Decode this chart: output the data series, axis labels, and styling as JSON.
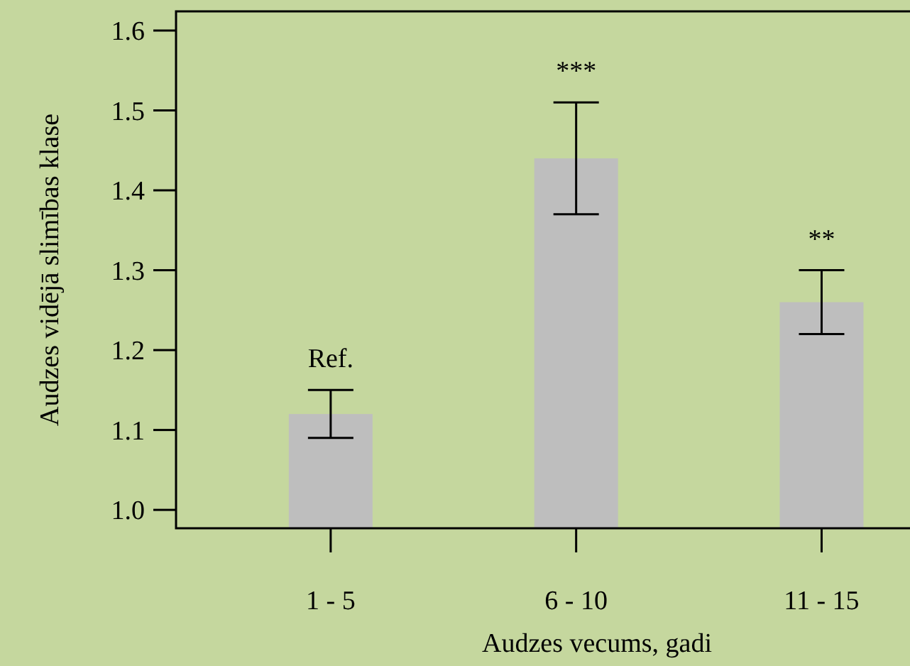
{
  "chart_data": {
    "type": "bar",
    "xlabel": "Audzes vecums, gadi",
    "ylabel": "Audzes vidējā slimības klase",
    "categories": [
      "1 - 5",
      "6 - 10",
      "11 - 15"
    ],
    "values": [
      1.12,
      1.44,
      1.26
    ],
    "color": "#bebebe",
    "errors": [
      [
        1.09,
        1.15
      ],
      [
        1.37,
        1.51
      ],
      [
        1.22,
        1.3
      ]
    ],
    "ylim": [
      0.977,
      1.624
    ],
    "yticks": [
      {
        "value": 1.0,
        "label": "1.0"
      },
      1.1,
      1.2,
      1.3,
      1.4,
      1.5,
      1.6
    ],
    "grid": false,
    "annotations": [
      {
        "text": "Ref.",
        "x": "1 - 5",
        "y": 1.15
      },
      {
        "text": "***",
        "x": "6 - 10",
        "y": 1.51
      },
      {
        "text": "**",
        "x": "11 - 15",
        "y": 1.3
      }
    ]
  }
}
